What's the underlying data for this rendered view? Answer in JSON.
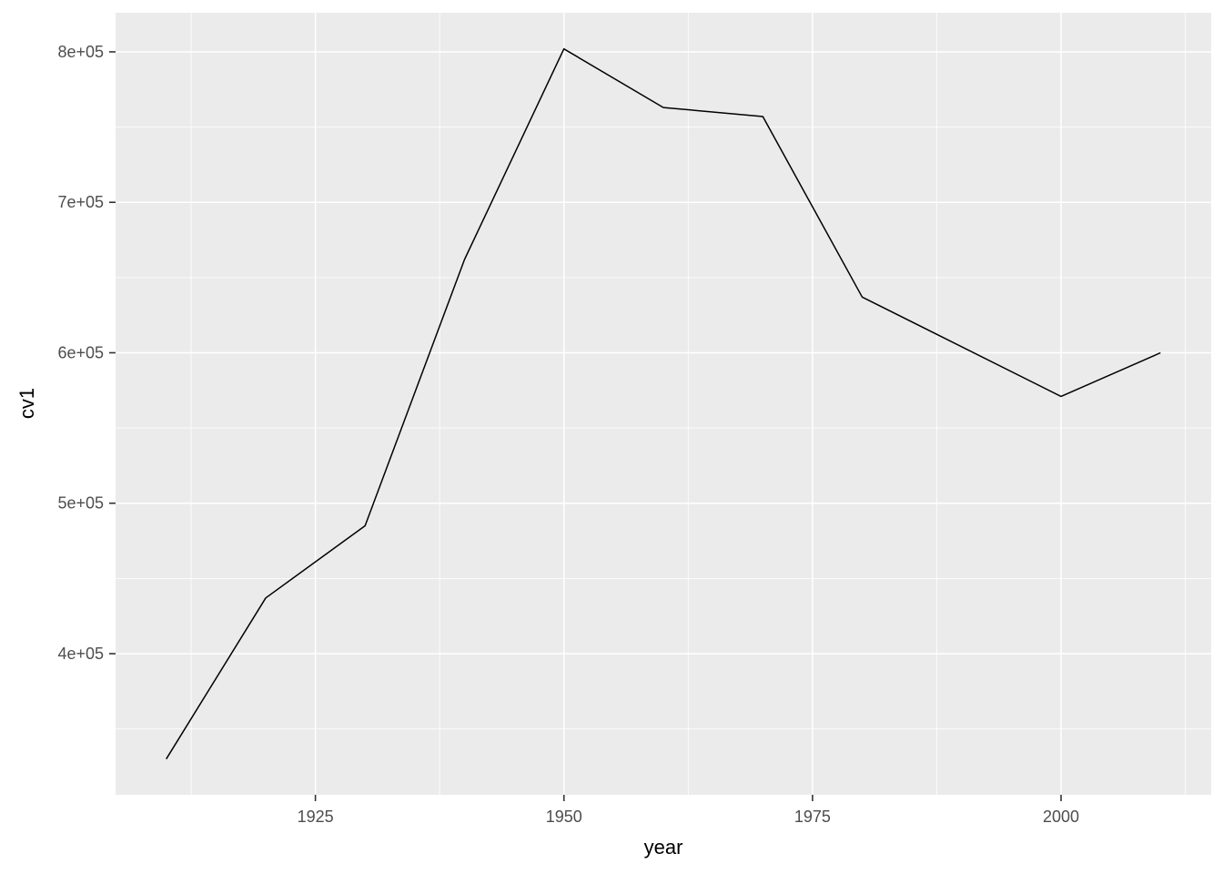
{
  "chart_data": {
    "type": "line",
    "title": "",
    "xlabel": "year",
    "ylabel": "cv1",
    "x": [
      1910,
      1920,
      1930,
      1940,
      1950,
      1960,
      1970,
      1980,
      2000,
      2010
    ],
    "y": [
      330000,
      437000,
      485000,
      662000,
      802000,
      763000,
      757000,
      637000,
      571000,
      600000
    ],
    "xlim": [
      1904.9,
      2015.1
    ],
    "ylim": [
      306200,
      826000
    ],
    "x_ticks": {
      "values": [
        1925,
        1950,
        1975,
        2000
      ],
      "labels": [
        "1925",
        "1950",
        "1975",
        "2000"
      ]
    },
    "y_ticks": {
      "values": [
        400000,
        500000,
        600000,
        700000,
        800000
      ],
      "labels": [
        "4e+05",
        "5e+05",
        "6e+05",
        "7e+05",
        "8e+05"
      ]
    },
    "x_minor": [
      1912.5,
      1937.5,
      1962.5,
      1987.5,
      2012.5
    ],
    "y_minor": [
      350000,
      450000,
      550000,
      650000,
      750000
    ],
    "grid": "on",
    "legend": "none",
    "colors": {
      "panel_background": "#EBEBEB",
      "grid_major": "#FFFFFF",
      "grid_minor": "#FFFFFF",
      "line": "#000000",
      "tick_mark": "#333333",
      "tick_text": "#4D4D4D",
      "axis_title": "#000000",
      "figure_background": "#FFFFFF"
    }
  }
}
